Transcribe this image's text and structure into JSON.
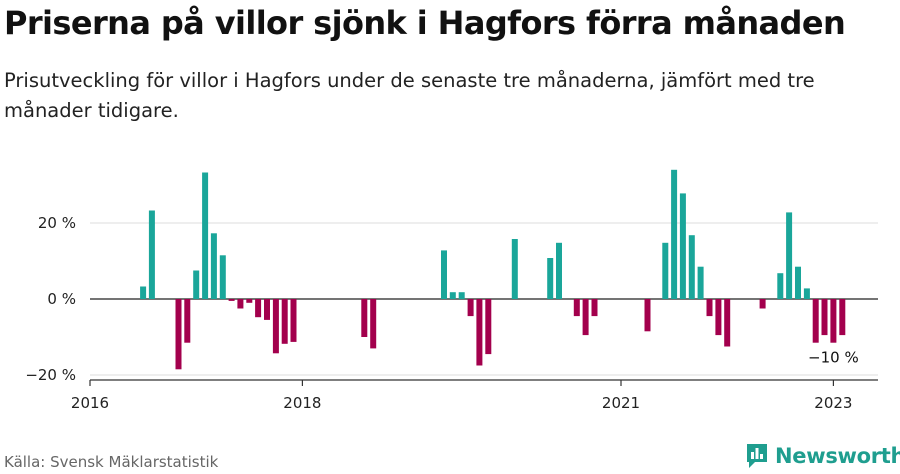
{
  "title": "Priserna på villor sjönk i Hagfors förra månaden",
  "subtitle": "Prisutveckling för villor i Hagfors under de senaste tre månaderna, jämfört med tre månader tidigare.",
  "source": "Källa: Svensk Mäklarstatistik",
  "brand": {
    "name": "Newsworthy",
    "icon": "newsworthy-logo-icon"
  },
  "colors": {
    "positive": "#1aa69a",
    "negative": "#a3004d",
    "grid": "#dddddd",
    "axis": "#333333"
  },
  "chart_data": {
    "type": "bar",
    "xlabel": "",
    "ylabel": "",
    "ylim": [
      -20,
      35
    ],
    "y_ticks": [
      {
        "value": 20,
        "label": "20 %"
      },
      {
        "value": 0,
        "label": "0 %"
      },
      {
        "value": -20,
        "label": "−20 %"
      }
    ],
    "x_ticks": [
      {
        "date": "2016-01",
        "label": "2016"
      },
      {
        "date": "2018-01",
        "label": "2018"
      },
      {
        "date": "2021-01",
        "label": "2021"
      },
      {
        "date": "2023-01",
        "label": "2023"
      }
    ],
    "x_range": [
      "2016-01",
      "2023-04"
    ],
    "grid": "horizontal",
    "annotation": {
      "date": "2023-01",
      "label": "−10 %"
    },
    "points": [
      {
        "date": "2016-07",
        "value": 3.3
      },
      {
        "date": "2016-08",
        "value": 23.3
      },
      {
        "date": "2016-11",
        "value": -18.5
      },
      {
        "date": "2016-12",
        "value": -11.5
      },
      {
        "date": "2017-01",
        "value": 7.5
      },
      {
        "date": "2017-02",
        "value": 33.3
      },
      {
        "date": "2017-03",
        "value": 17.3
      },
      {
        "date": "2017-04",
        "value": 11.5
      },
      {
        "date": "2017-05",
        "value": -0.5
      },
      {
        "date": "2017-06",
        "value": -2.5
      },
      {
        "date": "2017-07",
        "value": -1
      },
      {
        "date": "2017-08",
        "value": -4.8
      },
      {
        "date": "2017-09",
        "value": -5.5
      },
      {
        "date": "2017-10",
        "value": -14.3
      },
      {
        "date": "2017-11",
        "value": -11.8
      },
      {
        "date": "2017-12",
        "value": -11.3
      },
      {
        "date": "2018-08",
        "value": -10
      },
      {
        "date": "2018-09",
        "value": -13
      },
      {
        "date": "2019-05",
        "value": 12.8
      },
      {
        "date": "2019-06",
        "value": 1.8
      },
      {
        "date": "2019-07",
        "value": 1.8
      },
      {
        "date": "2019-08",
        "value": -4.5
      },
      {
        "date": "2019-09",
        "value": -17.5
      },
      {
        "date": "2019-10",
        "value": -14.5
      },
      {
        "date": "2020-01",
        "value": 15.8
      },
      {
        "date": "2020-05",
        "value": 10.8
      },
      {
        "date": "2020-06",
        "value": 14.8
      },
      {
        "date": "2020-08",
        "value": -4.5
      },
      {
        "date": "2020-09",
        "value": -9.5
      },
      {
        "date": "2020-10",
        "value": -4.5
      },
      {
        "date": "2021-04",
        "value": -8.5
      },
      {
        "date": "2021-06",
        "value": 14.8
      },
      {
        "date": "2021-07",
        "value": 34
      },
      {
        "date": "2021-08",
        "value": 27.8
      },
      {
        "date": "2021-09",
        "value": 16.8
      },
      {
        "date": "2021-10",
        "value": 8.5
      },
      {
        "date": "2021-11",
        "value": -4.5
      },
      {
        "date": "2021-12",
        "value": -9.5
      },
      {
        "date": "2022-01",
        "value": -12.5
      },
      {
        "date": "2022-05",
        "value": -2.5
      },
      {
        "date": "2022-07",
        "value": 6.8
      },
      {
        "date": "2022-08",
        "value": 22.8
      },
      {
        "date": "2022-09",
        "value": 8.5
      },
      {
        "date": "2022-10",
        "value": 2.8
      },
      {
        "date": "2022-11",
        "value": -11.5
      },
      {
        "date": "2022-12",
        "value": -9.5
      },
      {
        "date": "2023-01",
        "value": -11.5
      },
      {
        "date": "2023-02",
        "value": -9.5
      }
    ]
  }
}
